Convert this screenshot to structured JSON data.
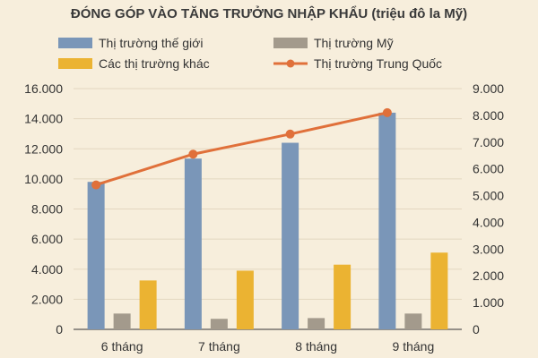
{
  "chart_data": {
    "type": "bar",
    "title": "ĐÓNG GÓP VÀO TĂNG TRƯỞNG NHẬP KHẨU (triệu đô la Mỹ)",
    "categories": [
      "6 tháng",
      "7 tháng",
      "8 tháng",
      "9 tháng"
    ],
    "series": [
      {
        "name": "Thị trường thế giới",
        "type": "bar",
        "axis": "left",
        "color": "#7a96b8",
        "values": [
          9800,
          11350,
          12400,
          14400
        ]
      },
      {
        "name": "Thị trường Mỹ",
        "type": "bar",
        "axis": "left",
        "color": "#a39a8c",
        "values": [
          1050,
          700,
          750,
          1050
        ]
      },
      {
        "name": "Các thị trường khác",
        "type": "bar",
        "axis": "left",
        "color": "#ebb332",
        "values": [
          3250,
          3900,
          4300,
          5100
        ]
      },
      {
        "name": "Thị trường Trung Quốc",
        "type": "line",
        "axis": "right",
        "color": "#e0703a",
        "values": [
          5400,
          6550,
          7300,
          8100
        ]
      }
    ],
    "y_left": {
      "range": [
        0,
        16000
      ],
      "ticks": [
        0,
        2000,
        4000,
        6000,
        8000,
        10000,
        12000,
        14000,
        16000
      ],
      "tick_labels": [
        "0",
        "2.000",
        "4.000",
        "6.000",
        "8.000",
        "10.000",
        "12.000",
        "14.000",
        "16.000"
      ]
    },
    "y_right": {
      "range": [
        0,
        9000
      ],
      "ticks": [
        0,
        1000,
        2000,
        3000,
        4000,
        5000,
        6000,
        7000,
        8000,
        9000
      ],
      "tick_labels": [
        "0",
        "1.000",
        "2.000",
        "3.000",
        "4.000",
        "5.000",
        "6.000",
        "7.000",
        "8.000",
        "9.000"
      ]
    },
    "grid": true,
    "legend": "top"
  }
}
